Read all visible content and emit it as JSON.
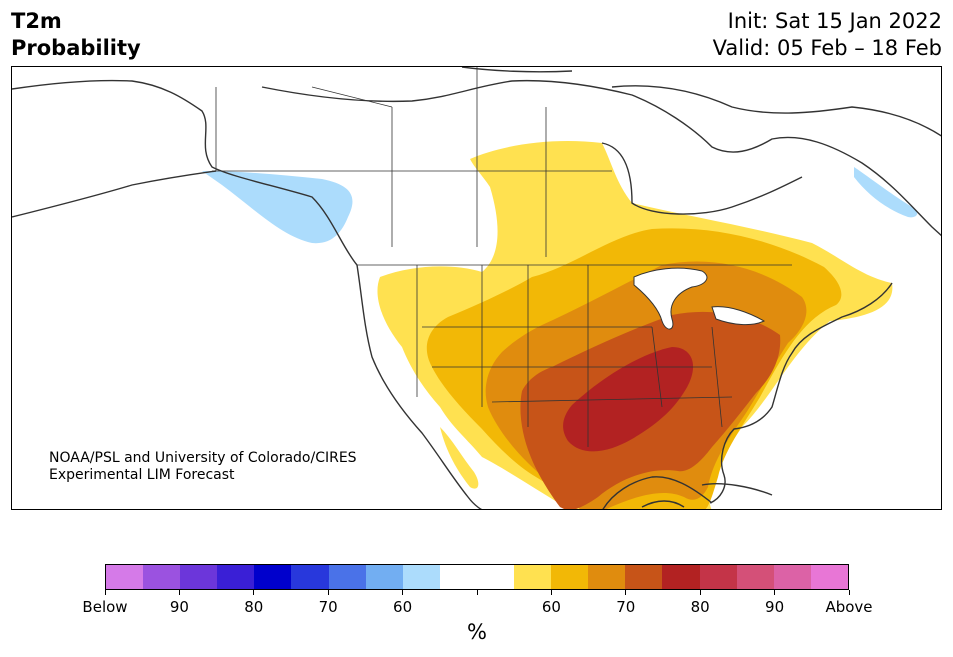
{
  "header": {
    "variable": "T2m",
    "product": "Probability",
    "init": "Init: Sat 15 Jan 2022",
    "valid": "Valid: 05 Feb – 18 Feb"
  },
  "credit": {
    "line1": "NOAA/PSL and University of Colorado/CIRES",
    "line2": "Experimental LIM Forecast"
  },
  "colorbar": {
    "colors": [
      "#d57ae8",
      "#9b52e0",
      "#6c36da",
      "#3a1fd6",
      "#0000cc",
      "#2838dc",
      "#4a72e8",
      "#72aef2",
      "#acdcfc",
      "#ffffff",
      "#ffffff",
      "#ffe150",
      "#f2b806",
      "#e08c0e",
      "#c75418",
      "#b22222",
      "#c43448",
      "#d45078",
      "#dc62a6",
      "#e876d6"
    ],
    "tick_labels": [
      "Below",
      "90",
      "80",
      "70",
      "60",
      "",
      "60",
      "70",
      "80",
      "90",
      "Above"
    ],
    "unit": "%"
  },
  "legend_colors": {
    "below_light_blue": "#acdcfc",
    "above_60": "#ffe150",
    "above_65": "#f2b806",
    "above_70": "#e08c0e",
    "above_75": "#c75418",
    "above_80": "#b22222",
    "land_outline": "#333333"
  }
}
